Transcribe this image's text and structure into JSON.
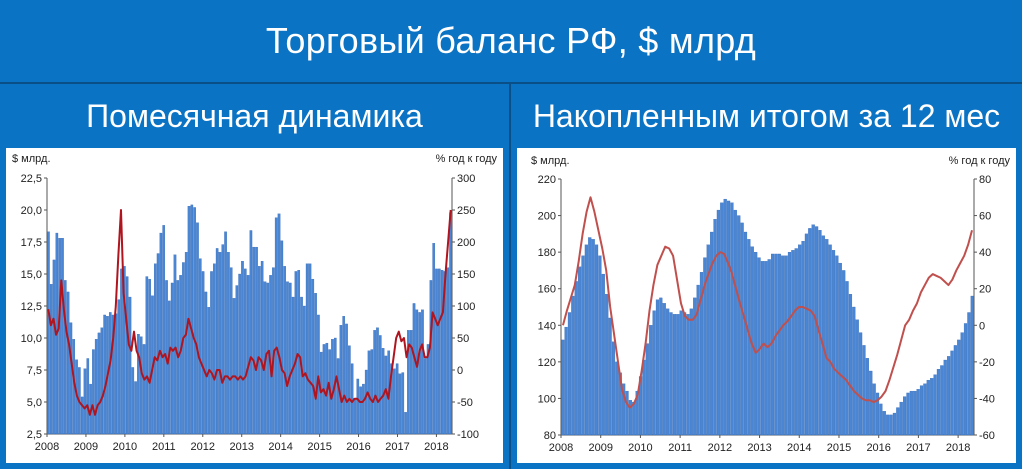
{
  "title": "Торговый баланс РФ, $ млрд",
  "left": {
    "header": "Помесячная динамика",
    "left_unit": "$ млрд.",
    "right_unit": "% год к году"
  },
  "right": {
    "header": "Накопленным итогом за 12 мес",
    "left_unit": "$ млрд.",
    "right_unit": "% год к году"
  },
  "colors": {
    "bar": "#4a86d4",
    "bar_edge": "#2f64b0",
    "line_left": "#b0151f",
    "line_right": "#c0504d",
    "header_bg": "#0b73c4"
  },
  "chart_data": [
    {
      "type": "bar",
      "title": "Помесячная динамика",
      "xlabel": "",
      "ylabel": "$ млрд.",
      "y2label": "% год к году",
      "ylim": [
        2.5,
        22.5
      ],
      "y2lim": [
        -100,
        300
      ],
      "yticks": [
        "2,5",
        "5,0",
        "7,5",
        "10,0",
        "12,5",
        "15,0",
        "17,5",
        "20,0",
        "22,5"
      ],
      "y2ticks": [
        "-100",
        "-50",
        "0",
        "50",
        "100",
        "150",
        "200",
        "250",
        "300"
      ],
      "xticks": [
        "2008",
        "2009",
        "2010",
        "2011",
        "2012",
        "2013",
        "2014",
        "2015",
        "2016",
        "2017",
        "2018"
      ],
      "grid": false,
      "series": [
        {
          "kind": "bar",
          "values": [
            18.3,
            14.2,
            16.1,
            18.2,
            17.8,
            17.8,
            14.5,
            13.6,
            11.2,
            9.9,
            8.3,
            7.7,
            5.4,
            7.6,
            8.4,
            6.4,
            9.1,
            9.9,
            10.4,
            10.8,
            11.8,
            11.7,
            12.0,
            11.8,
            11.9,
            13.0,
            15.4,
            15.6,
            14.8,
            13.2,
            7.7,
            6.6,
            10.3,
            10.1,
            9.5,
            14.8,
            14.6,
            13.3,
            15.8,
            16.6,
            18.2,
            18.8,
            14.5,
            12.9,
            14.3,
            16.5,
            14.5,
            14.9,
            15.9,
            16.7,
            20.3,
            20.4,
            20.2,
            19.0,
            16.2,
            15.2,
            13.6,
            12.4,
            15.2,
            15.8,
            17.0,
            16.7,
            17.3,
            18.3,
            16.7,
            15.5,
            13.1,
            14.1,
            15.0,
            16.0,
            15.4,
            14.9,
            18.4,
            17.1,
            17.1,
            15.6,
            16.0,
            14.4,
            14.3,
            14.9,
            15.5,
            19.4,
            19.7,
            17.6,
            15.6,
            14.4,
            14.3,
            13.2,
            15.2,
            15.3,
            13.2,
            12.5,
            15.8,
            15.8,
            14.6,
            13.5,
            11.8,
            8.9,
            9.5,
            9.6,
            9.1,
            9.9,
            10.0,
            8.4,
            11.0,
            11.7,
            11.1,
            9.4,
            8.0,
            5.3,
            6.8,
            6.2,
            6.4,
            7.5,
            9.0,
            9.1,
            10.6,
            10.8,
            10.2,
            9.2,
            8.6,
            9.0,
            8.0,
            7.6,
            8.0,
            7.2,
            7.3,
            4.2,
            10.6,
            10.6,
            12.7,
            12.2,
            12.0,
            12.2,
            8.4,
            9.5,
            14.5,
            17.4,
            15.4,
            15.4,
            15.3,
            15.2,
            15.5,
            19.8
          ]
        },
        {
          "kind": "line",
          "axis": "y2",
          "values": [
            95,
            70,
            80,
            55,
            65,
            140,
            95,
            60,
            40,
            10,
            -20,
            -40,
            -50,
            -55,
            -60,
            -55,
            -70,
            -55,
            -70,
            -55,
            -50,
            -40,
            -25,
            -5,
            15,
            50,
            100,
            180,
            250,
            120,
            80,
            40,
            30,
            60,
            30,
            20,
            -5,
            -15,
            -10,
            -20,
            0,
            20,
            15,
            30,
            20,
            25,
            10,
            35,
            30,
            35,
            20,
            30,
            50,
            55,
            80,
            65,
            50,
            40,
            20,
            10,
            0,
            -10,
            0,
            -5,
            -15,
            0,
            0,
            -20,
            -10,
            -10,
            -15,
            -10,
            -10,
            -15,
            -10,
            -15,
            -10,
            5,
            20,
            15,
            0,
            20,
            15,
            0,
            25,
            30,
            -10,
            30,
            35,
            20,
            0,
            -5,
            -25,
            -10,
            0,
            10,
            25,
            20,
            -10,
            -5,
            -15,
            -20,
            -25,
            -45,
            -10,
            -35,
            -30,
            -40,
            -20,
            -45,
            -30,
            -10,
            -30,
            -50,
            -40,
            -50,
            -45,
            -50,
            -45,
            -45,
            -50,
            -50,
            -45,
            -35,
            -45,
            -50,
            -40,
            -50,
            -45,
            -40,
            -30,
            -45,
            -10,
            20,
            50,
            60,
            45,
            50,
            20,
            40,
            35,
            20,
            5,
            30,
            40,
            20,
            20,
            35,
            90,
            80,
            70,
            80,
            90,
            150,
            200,
            250
          ]
        }
      ]
    },
    {
      "type": "bar",
      "title": "Накопленным итогом за 12 мес",
      "xlabel": "",
      "ylabel": "$ млрд.",
      "y2label": "% год к году",
      "ylim": [
        80,
        220
      ],
      "y2lim": [
        -60,
        80
      ],
      "yticks": [
        "80",
        "100",
        "120",
        "140",
        "160",
        "180",
        "200",
        "220"
      ],
      "y2ticks": [
        "-60",
        "-40",
        "-20",
        "0",
        "20",
        "40",
        "60",
        "80"
      ],
      "xticks": [
        "2008",
        "2009",
        "2010",
        "2011",
        "2012",
        "2013",
        "2014",
        "2015",
        "2016",
        "2017",
        "2018"
      ],
      "grid": false,
      "series": [
        {
          "kind": "bar",
          "values": [
            132,
            139,
            147,
            156,
            164,
            172,
            178,
            184,
            188,
            187,
            184,
            178,
            168,
            157,
            144,
            131,
            120,
            114,
            108,
            104,
            99,
            98,
            104,
            112,
            121,
            130,
            140,
            148,
            154,
            155,
            152,
            149,
            147,
            146,
            146,
            148,
            147,
            146,
            149,
            155,
            162,
            169,
            177,
            184,
            191,
            198,
            203,
            207,
            209,
            208,
            207,
            203,
            200,
            196,
            191,
            187,
            183,
            180,
            177,
            175,
            175,
            176,
            179,
            179,
            179,
            178,
            178,
            180,
            181,
            182,
            184,
            186,
            190,
            193,
            195,
            194,
            192,
            189,
            187,
            184,
            181,
            178,
            174,
            170,
            164,
            157,
            150,
            143,
            136,
            129,
            122,
            115,
            108,
            103,
            97,
            93,
            91,
            91,
            92,
            95,
            98,
            101,
            103,
            104,
            104,
            105,
            107,
            108,
            110,
            111,
            113,
            116,
            118,
            121,
            123,
            126,
            129,
            132,
            136,
            141,
            147,
            156
          ]
        },
        {
          "kind": "line",
          "axis": "y2",
          "values": [
            0,
            8,
            15,
            22,
            35,
            50,
            62,
            70,
            62,
            52,
            42,
            30,
            10,
            -5,
            -20,
            -35,
            -42,
            -45,
            -43,
            -38,
            -25,
            -10,
            8,
            22,
            33,
            38,
            43,
            42,
            38,
            25,
            12,
            5,
            3,
            3,
            6,
            14,
            22,
            28,
            34,
            38,
            40,
            39,
            34,
            28,
            20,
            12,
            5,
            -3,
            -10,
            -15,
            -13,
            -10,
            -12,
            -10,
            -6,
            -3,
            0,
            2,
            5,
            8,
            10,
            10,
            9,
            8,
            5,
            -3,
            -10,
            -18,
            -20,
            -24,
            -26,
            -28,
            -30,
            -33,
            -36,
            -38,
            -40,
            -41,
            -41,
            -42,
            -41,
            -39,
            -36,
            -30,
            -23,
            -16,
            -8,
            0,
            3,
            8,
            12,
            18,
            22,
            26,
            28,
            27,
            26,
            24,
            22,
            25,
            30,
            34,
            38,
            44,
            52
          ]
        }
      ]
    }
  ]
}
